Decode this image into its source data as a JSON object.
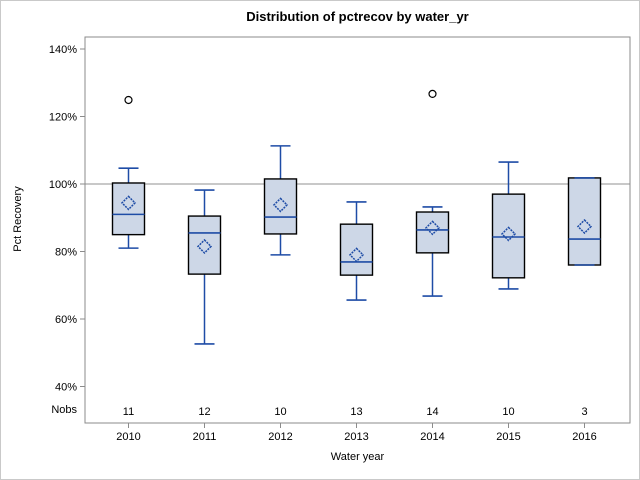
{
  "title": "Distribution of pctrecov by water_yr",
  "axes": {
    "y_label": "Pct Recovery",
    "x_label": "Water year",
    "nobs_label": "Nobs"
  },
  "chart_data": {
    "type": "boxplot",
    "title": "Distribution of pctrecov by water_yr",
    "xlabel": "Water year",
    "ylabel": "Pct Recovery",
    "categories": [
      "2010",
      "2011",
      "2012",
      "2013",
      "2014",
      "2015",
      "2016"
    ],
    "nobs": [
      11,
      12,
      10,
      13,
      14,
      10,
      3
    ],
    "y_axis": {
      "ticks": [
        140,
        120,
        100,
        80,
        60,
        40
      ],
      "tick_unit": "%",
      "ylim": [
        29,
        144
      ],
      "ref_line": 100,
      "grid": false
    },
    "legend": "none",
    "series": [
      {
        "category": "2010",
        "n": 11,
        "whisker_low": 81.0,
        "q1": 85.0,
        "median": 91.0,
        "q3": 100.3,
        "whisker_high": 104.7,
        "mean": 94.4,
        "outliers": [
          124.9
        ]
      },
      {
        "category": "2011",
        "n": 12,
        "whisker_low": 52.6,
        "q1": 73.3,
        "median": 85.5,
        "q3": 90.5,
        "whisker_high": 98.2,
        "mean": 81.5,
        "outliers": []
      },
      {
        "category": "2012",
        "n": 10,
        "whisker_low": 79.0,
        "q1": 85.2,
        "median": 90.2,
        "q3": 101.5,
        "whisker_high": 111.3,
        "mean": 93.8,
        "outliers": []
      },
      {
        "category": "2013",
        "n": 13,
        "whisker_low": 65.6,
        "q1": 73.0,
        "median": 76.9,
        "q3": 88.1,
        "whisker_high": 94.7,
        "mean": 79.0,
        "outliers": []
      },
      {
        "category": "2014",
        "n": 14,
        "whisker_low": 66.8,
        "q1": 79.6,
        "median": 86.4,
        "q3": 91.7,
        "whisker_high": 93.2,
        "mean": 87.0,
        "outliers": [
          126.7
        ]
      },
      {
        "category": "2015",
        "n": 10,
        "whisker_low": 68.9,
        "q1": 72.2,
        "median": 84.3,
        "q3": 97.0,
        "whisker_high": 106.5,
        "mean": 85.2,
        "outliers": []
      },
      {
        "category": "2016",
        "n": 3,
        "whisker_low": 76.0,
        "q1": 76.0,
        "median": 83.7,
        "q3": 101.8,
        "whisker_high": 101.8,
        "mean": 87.4,
        "outliers": []
      }
    ],
    "colors": {
      "box_fill": "#cdd7e7",
      "box_border": "#000000",
      "whisker_line": "#1e4ca6",
      "outlier_stroke": "#000000",
      "ref_line": "#a6a6a6",
      "frame_border": "#8b8b8b",
      "text": "#000000"
    }
  }
}
